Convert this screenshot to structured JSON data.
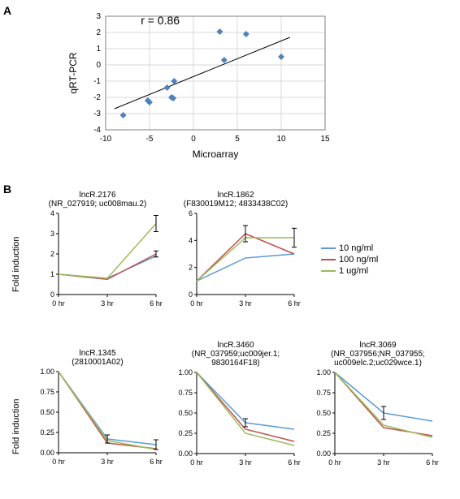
{
  "panelA": {
    "label": "A",
    "scatter": {
      "type": "scatter",
      "annotation": "r = 0.86",
      "annotation_fontsize": 14,
      "annotation_xy": [
        -6,
        2.5
      ],
      "xlabel": "Microarray",
      "ylabel": "qRT-PCR",
      "label_fontsize": 12,
      "xlim": [
        -10,
        15
      ],
      "ylim": [
        -4,
        3
      ],
      "xtick_step": 5,
      "ytick_step": 1,
      "grid_color": "#d9d9d9",
      "axis_color": "#808080",
      "marker_color": "#4f81bd",
      "marker_size": 8,
      "marker_shape": "diamond",
      "trend_line_color": "#000000",
      "trend_line_width": 1,
      "background_color": "#ffffff",
      "points": [
        {
          "x": -8,
          "y": -3.1
        },
        {
          "x": -5,
          "y": -2.3
        },
        {
          "x": -5.2,
          "y": -2.2
        },
        {
          "x": -3,
          "y": -1.4
        },
        {
          "x": -2.5,
          "y": -2.0
        },
        {
          "x": -2.2,
          "y": -1.0
        },
        {
          "x": -2.3,
          "y": -2.05
        },
        {
          "x": 3,
          "y": 2.05
        },
        {
          "x": 3.5,
          "y": 0.3
        },
        {
          "x": 6,
          "y": 1.9
        },
        {
          "x": 10,
          "y": 0.5
        }
      ],
      "trend_line": {
        "x1": -9,
        "y1": -2.7,
        "x2": 11,
        "y2": 1.7
      }
    }
  },
  "panelB": {
    "label": "B",
    "ylabel_shared": "Fold induction",
    "legend": {
      "items": [
        {
          "label": "10 ng/ml",
          "color": "#5b9bd5"
        },
        {
          "label": "100 ng/ml",
          "color": "#c0504d"
        },
        {
          "label": "1 ug/ml",
          "color": "#9bbb59"
        }
      ],
      "fontsize": 10
    },
    "x_categories": [
      "0 hr",
      "3 hr",
      "6 hr"
    ],
    "line_width": 1.5,
    "tick_fontsize": 9,
    "charts": [
      {
        "key": "lncR2176",
        "title_line1": "lncR.2176",
        "title_line2": "(NR_027919; uc008mau.2)",
        "ylim": [
          0,
          4
        ],
        "ytick_step": 1,
        "series": {
          "10": [
            1,
            0.8,
            1.9
          ],
          "100": [
            1,
            0.75,
            2.0
          ],
          "1u": [
            1,
            0.8,
            3.5
          ]
        },
        "err": {
          "6hr_1u": 0.4,
          "6hr_100": 0.15
        }
      },
      {
        "key": "lncR1862",
        "title_line1": "lncR.1862",
        "title_line2": "(F830019M12; 4833438C02)",
        "ylim": [
          0,
          6
        ],
        "ytick_step": 2,
        "series": {
          "10": [
            1,
            2.7,
            3.0
          ],
          "100": [
            1,
            4.5,
            3.0
          ],
          "1u": [
            1,
            4.2,
            4.2
          ]
        },
        "err": {
          "3hr_100": 0.6,
          "6hr_1u": 0.7
        }
      },
      {
        "key": "lncR1345",
        "title_line1": "lncR.1345",
        "title_line2": "(2810001A02)",
        "ylim": [
          0,
          1
        ],
        "ytick_step": 0.25,
        "series": {
          "10": [
            1.0,
            0.17,
            0.1
          ],
          "100": [
            1.0,
            0.12,
            0.05
          ],
          "1u": [
            1.0,
            0.15,
            0.04
          ]
        },
        "err": {
          "3hr_10": 0.05,
          "6hr_10": 0.06
        }
      },
      {
        "key": "lncR3460",
        "title_line1": "lncR.3460",
        "title_line2": "(NR_037959;uc009jer.1;",
        "title_line3": "9830164F18)",
        "ylim": [
          0,
          1
        ],
        "ytick_step": 0.25,
        "series": {
          "10": [
            1.0,
            0.38,
            0.3
          ],
          "100": [
            1.0,
            0.3,
            0.15
          ],
          "1u": [
            1.0,
            0.25,
            0.1
          ]
        },
        "err": {
          "3hr_10": 0.05
        }
      },
      {
        "key": "lncR3069",
        "title_line1": "lncR.3069",
        "title_line2": "(NR_037956;NR_037955;",
        "title_line3": "uc009elc.2;uc029wce.1)",
        "ylim": [
          0,
          1
        ],
        "ytick_step": 0.25,
        "series": {
          "10": [
            1.0,
            0.5,
            0.4
          ],
          "100": [
            1.0,
            0.32,
            0.22
          ],
          "1u": [
            1.0,
            0.35,
            0.2
          ]
        },
        "err": {
          "3hr_10": 0.08
        }
      }
    ]
  }
}
